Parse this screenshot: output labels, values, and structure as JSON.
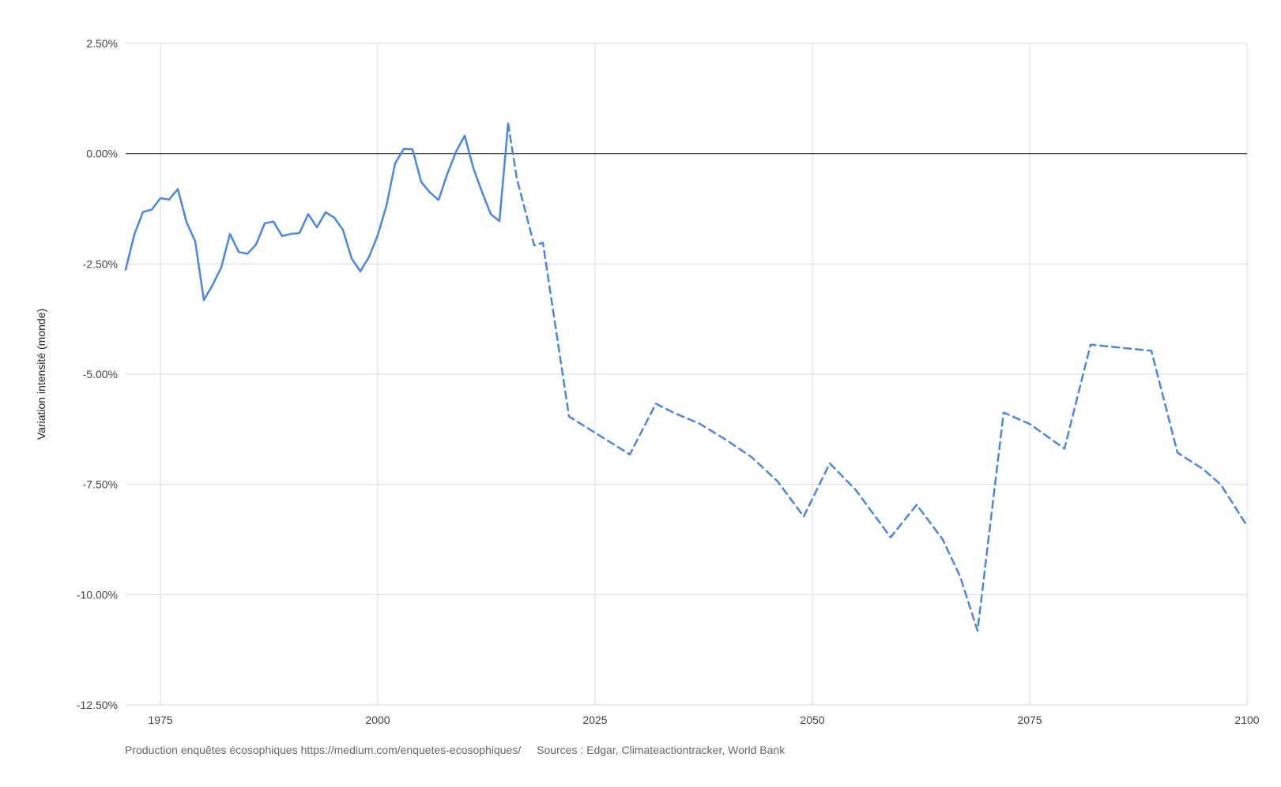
{
  "chart_data": {
    "type": "line",
    "title": "",
    "ylabel": "Variation intensité (monde)",
    "xlabel": "",
    "xlim": [
      1971,
      2100
    ],
    "ylim": [
      -12.5,
      2.5
    ],
    "x_ticks": [
      1975,
      2000,
      2025,
      2050,
      2075,
      2100
    ],
    "x_tick_labels": [
      "1975",
      "2000",
      "2025",
      "2050",
      "2075",
      "2100"
    ],
    "y_ticks": [
      2.5,
      0,
      -2.5,
      -5,
      -7.5,
      -10,
      -12.5
    ],
    "y_tick_labels": [
      "2.50%",
      "0.00%",
      "-2.50%",
      "-5.00%",
      "-7.50%",
      "-10.00%",
      "-12.50%"
    ],
    "grid": true,
    "legend": "none",
    "reference_line": 0,
    "colors": {
      "series": "#4a86e8",
      "grid": "#d9d9d9",
      "zero_line": "#333333"
    },
    "series": [
      {
        "style": "solid",
        "x": [
          1971,
          1972,
          1973,
          1974,
          1975,
          1976,
          1977,
          1978,
          1979,
          1980,
          1981,
          1982,
          1983,
          1984,
          1985,
          1986,
          1987,
          1988,
          1989,
          1990,
          1991,
          1992,
          1993,
          1994,
          1995,
          1996,
          1997,
          1998,
          1999,
          2000,
          2001,
          2002,
          2003,
          2004,
          2005,
          2006,
          2007,
          2008,
          2009,
          2010,
          2011,
          2012,
          2013,
          2014,
          2015
        ],
        "y": [
          -2.63,
          -1.83,
          -1.32,
          -1.27,
          -1.01,
          -1.04,
          -0.8,
          -1.55,
          -1.99,
          -3.32,
          -2.98,
          -2.58,
          -1.82,
          -2.23,
          -2.27,
          -2.06,
          -1.58,
          -1.54,
          -1.87,
          -1.82,
          -1.8,
          -1.37,
          -1.67,
          -1.33,
          -1.45,
          -1.73,
          -2.38,
          -2.67,
          -2.34,
          -1.85,
          -1.18,
          -0.22,
          0.11,
          0.1,
          -0.64,
          -0.88,
          -1.05,
          -0.46,
          0.04,
          0.41,
          -0.33,
          -0.87,
          -1.37,
          -1.53,
          0.68
        ]
      },
      {
        "style": "dashed",
        "x": [
          2015,
          2016,
          2018,
          2019,
          2022,
          2029,
          2032,
          2034,
          2037,
          2040,
          2043,
          2046,
          2049,
          2052,
          2055,
          2059,
          2062,
          2065,
          2067,
          2069,
          2072,
          2075,
          2079,
          2082,
          2089,
          2092,
          2095,
          2097,
          2100
        ],
        "y": [
          0.68,
          -0.56,
          -2.08,
          -2.02,
          -5.96,
          -6.82,
          -5.67,
          -5.87,
          -6.12,
          -6.48,
          -6.88,
          -7.43,
          -8.23,
          -7.02,
          -7.63,
          -8.7,
          -7.96,
          -8.75,
          -9.59,
          -10.82,
          -5.87,
          -6.13,
          -6.69,
          -4.33,
          -4.47,
          -6.78,
          -7.16,
          -7.51,
          -8.44
        ]
      }
    ]
  },
  "footer": {
    "production": "Production enquêtes écosophiques https://medium.com/enquetes-ecosophiques/",
    "sources": "Sources : Edgar, Climateactiontracker, World Bank"
  }
}
